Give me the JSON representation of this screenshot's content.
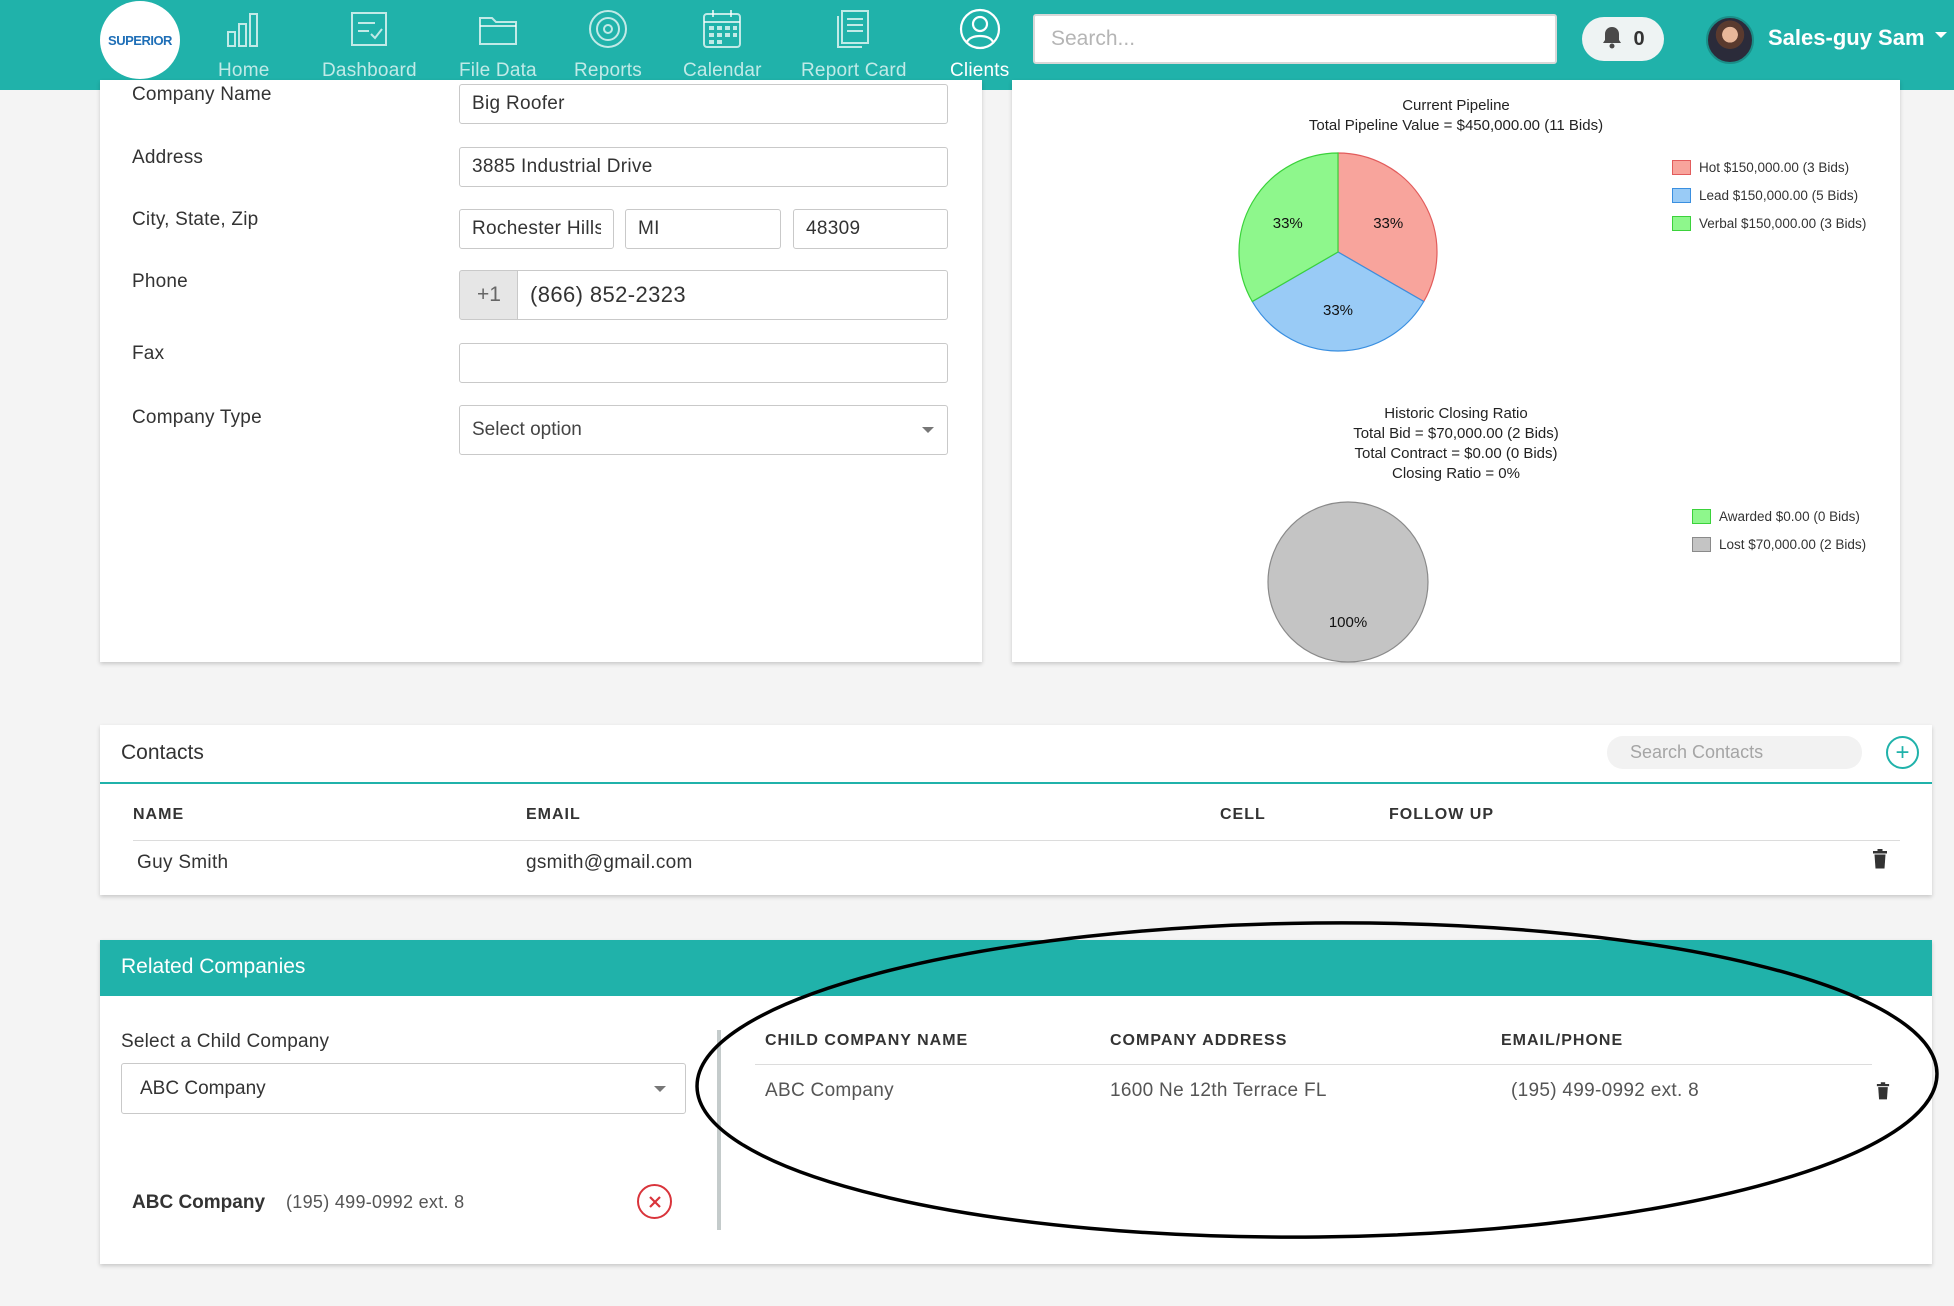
{
  "header": {
    "logo_text": "SUPERIOR",
    "nav": [
      {
        "label": "Home",
        "icon": "bar-chart-icon"
      },
      {
        "label": "Dashboard",
        "icon": "checklist-icon"
      },
      {
        "label": "File Data",
        "icon": "folder-icon"
      },
      {
        "label": "Reports",
        "icon": "target-icon"
      },
      {
        "label": "Calendar",
        "icon": "calendar-icon"
      },
      {
        "label": "Report Card",
        "icon": "document-icon"
      },
      {
        "label": "Clients",
        "icon": "user-circle-icon",
        "active": true
      }
    ],
    "search_placeholder": "Search...",
    "notification_count": "0",
    "user_name": "Sales-guy Sam"
  },
  "company_form": {
    "company_name_label": "Company Name",
    "company_name": "Big Roofer",
    "address_label": "Address",
    "address": "3885 Industrial Drive",
    "city_state_zip_label": "City, State, Zip",
    "city": "Rochester Hills",
    "state": "MI",
    "zip": "48309",
    "phone_label": "Phone",
    "phone_prefix": "+1",
    "phone": "(866) 852-2323",
    "fax_label": "Fax",
    "fax": "",
    "company_type_label": "Company Type",
    "company_type": "Select option"
  },
  "chart_data": [
    {
      "type": "pie",
      "title": "Current Pipeline",
      "subtitle": "Total Pipeline Value = $450,000.00 (11 Bids)",
      "categories": [
        "Hot",
        "Lead",
        "Verbal"
      ],
      "values": [
        150000,
        150000,
        150000
      ],
      "slice_labels": [
        "33%",
        "33%",
        "33%"
      ],
      "legend": [
        "Hot $150,000.00 (3 Bids)",
        "Lead $150,000.00 (5 Bids)",
        "Verbal $150,000.00 (3 Bids)"
      ],
      "colors": [
        "#f8a49c",
        "#99cbf6",
        "#8ef78c"
      ],
      "stroke_colors": [
        "#e25c5c",
        "#3a8fe0",
        "#3bd23b"
      ],
      "legend_position": "right"
    },
    {
      "type": "pie",
      "title": "Historic Closing Ratio",
      "subtitle_lines": [
        "Total Bid = $70,000.00 (2 Bids)",
        "Total Contract = $0.00 (0 Bids)",
        "Closing Ratio = 0%"
      ],
      "categories": [
        "Awarded",
        "Lost"
      ],
      "values": [
        0,
        70000
      ],
      "slice_labels": [
        "",
        "100%"
      ],
      "legend": [
        "Awarded $0.00 (0 Bids)",
        "Lost $70,000.00 (2 Bids)"
      ],
      "colors": [
        "#8ef78c",
        "#c4c4c4"
      ],
      "stroke_colors": [
        "#3bd23b",
        "#8a8a8a"
      ],
      "legend_position": "right"
    }
  ],
  "contacts": {
    "title": "Contacts",
    "search_placeholder": "Search Contacts",
    "columns": [
      "NAME",
      "EMAIL",
      "CELL",
      "FOLLOW UP"
    ],
    "rows": [
      {
        "name": "Guy Smith",
        "email": "gsmith@gmail.com",
        "cell": "",
        "follow_up": ""
      }
    ]
  },
  "related": {
    "title": "Related Companies",
    "select_label": "Select a Child Company",
    "selected": "ABC Company",
    "selected_item": {
      "name": "ABC Company",
      "phone": "(195) 499-0992 ext. 8"
    },
    "columns": [
      "CHILD COMPANY NAME",
      "COMPANY ADDRESS",
      "EMAIL/PHONE"
    ],
    "rows": [
      {
        "name": "ABC Company",
        "address": "1600 Ne 12th Terrace FL",
        "contact": "(195) 499-0992 ext. 8"
      }
    ]
  },
  "colors": {
    "accent": "#20b2aa",
    "danger": "#d9343b",
    "annotation": "#000000"
  }
}
